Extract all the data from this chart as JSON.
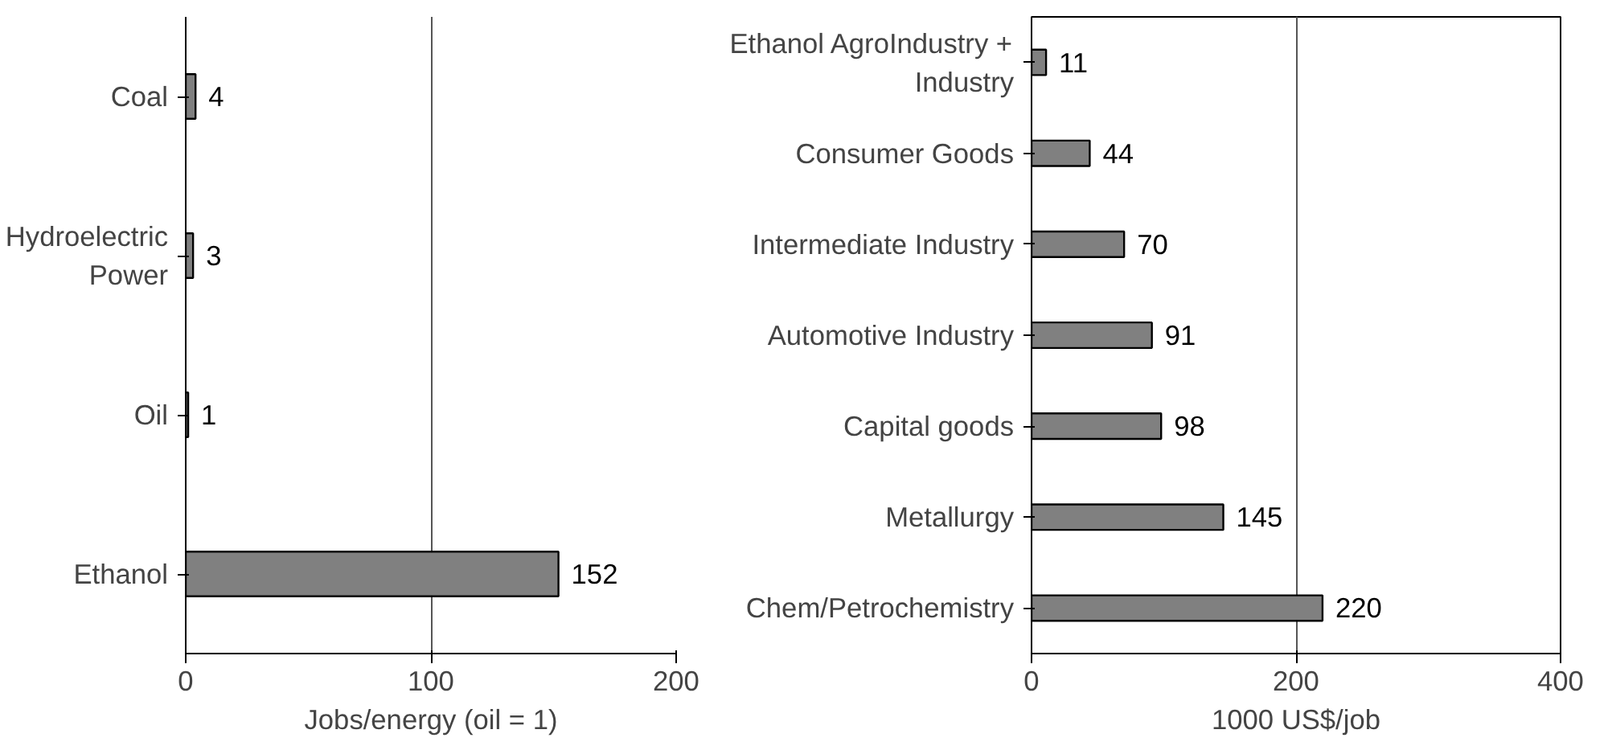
{
  "chart_data": [
    {
      "type": "bar",
      "orientation": "horizontal",
      "categories": [
        "Coal",
        "Hydroelectric Power",
        "Oil",
        "Ethanol"
      ],
      "values": [
        4,
        3,
        1,
        152
      ],
      "color": "#808080",
      "xlim": [
        0,
        200
      ],
      "xticks": [
        0,
        100,
        200
      ],
      "xlabel": "Jobs/energy (oil = 1)",
      "grid": "x",
      "data_labels": true
    },
    {
      "type": "bar",
      "orientation": "horizontal",
      "categories": [
        "Ethanol AgroIndustry + Industry",
        "Consumer Goods",
        "Intermediate Industry",
        "Automotive Industry",
        "Capital goods",
        "Metallurgy",
        "Chem/Petrochemistry"
      ],
      "values": [
        11,
        44,
        70,
        91,
        98,
        145,
        220
      ],
      "color": "#808080",
      "xlim": [
        0,
        400
      ],
      "xticks": [
        0,
        200,
        400
      ],
      "xlabel": "1000 US$/job",
      "grid": "x",
      "data_labels": true
    }
  ]
}
